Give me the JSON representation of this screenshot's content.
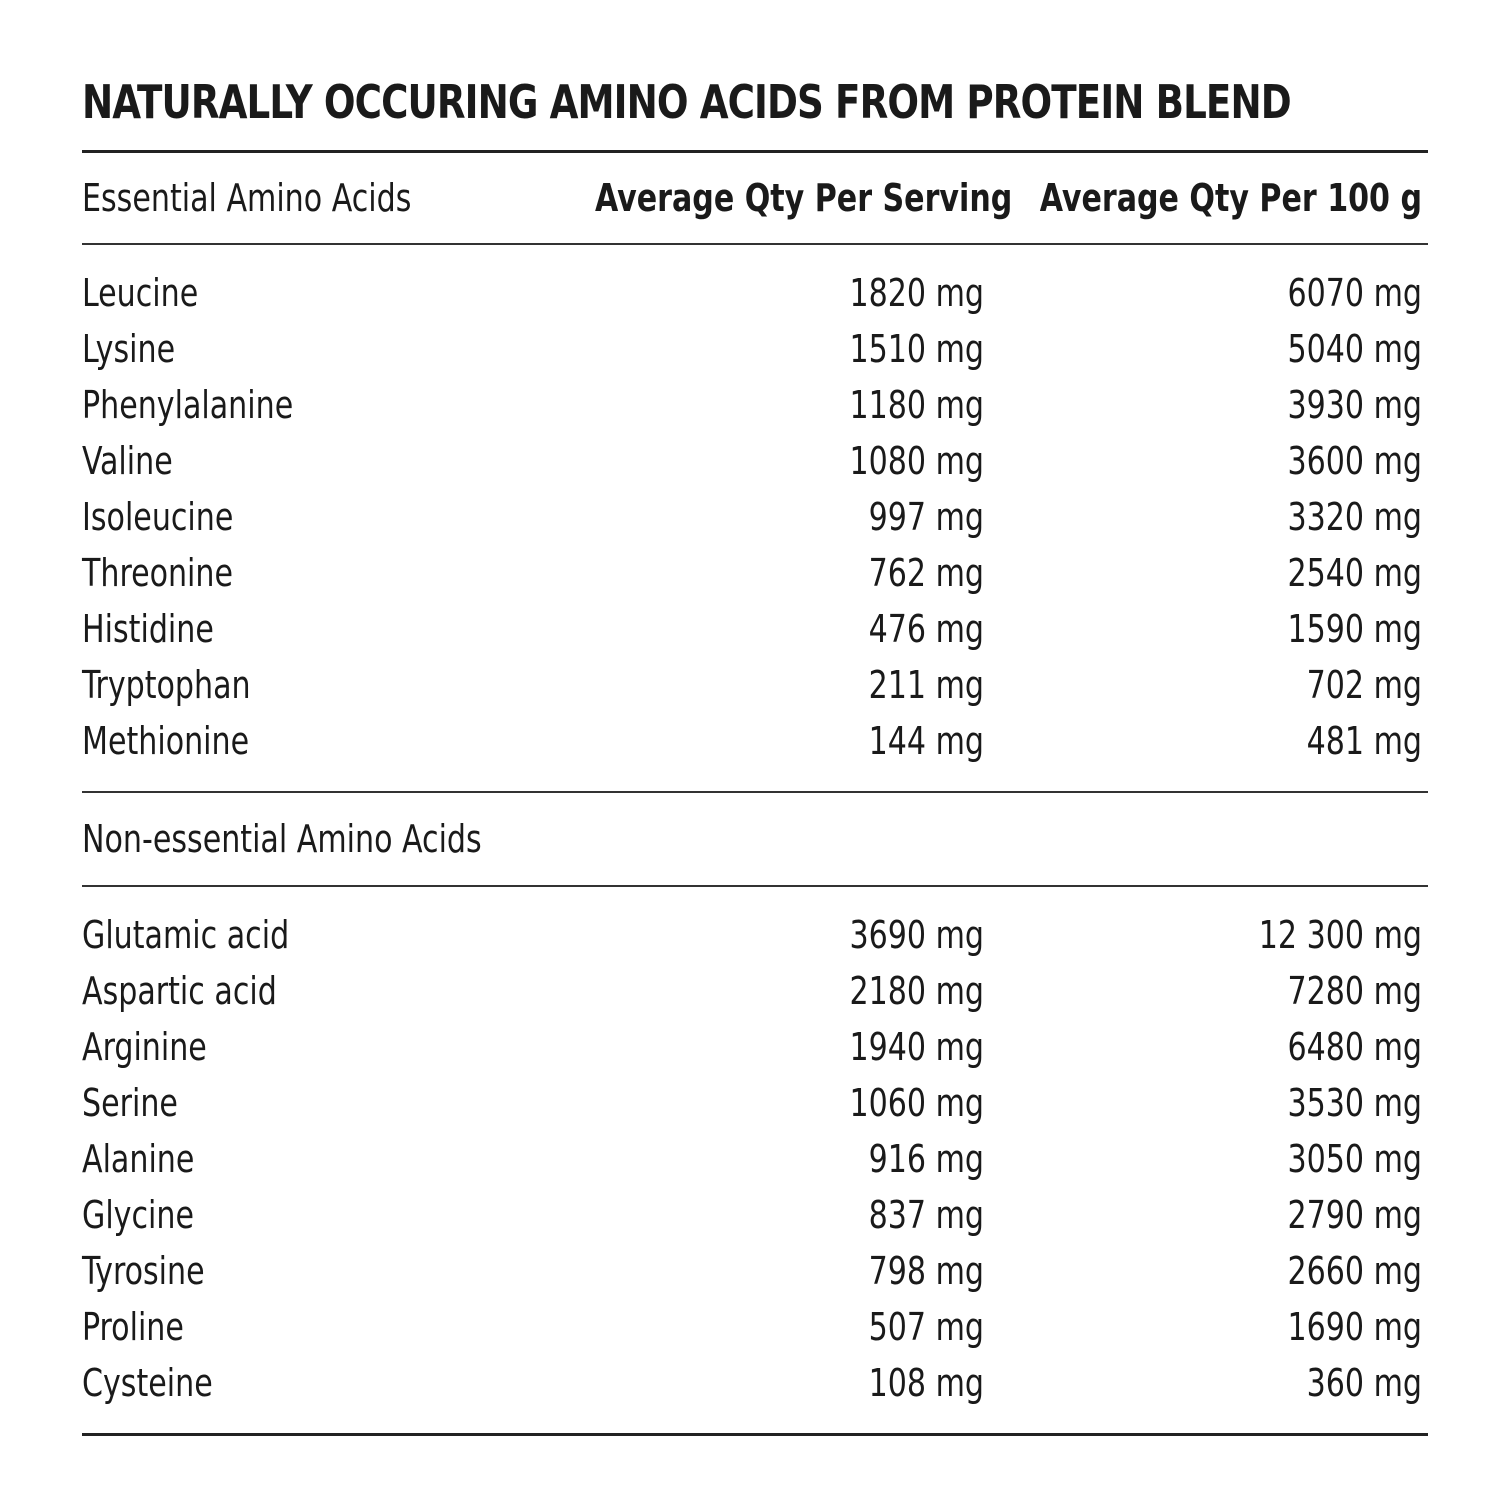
{
  "title": "NATURALLY OCCURING AMINO ACIDS FROM PROTEIN BLEND",
  "table": {
    "header": [
      "Essential Amino Acids",
      "Average Qty Per Serving",
      "Average Qty Per 100 g"
    ],
    "essential_rows": [
      [
        "Leucine",
        "1820 mg",
        "6070 mg"
      ],
      [
        "Lysine",
        "1510 mg",
        "5040 mg"
      ],
      [
        "Phenylalanine",
        "1180 mg",
        "3930 mg"
      ],
      [
        "Valine",
        "1080 mg",
        "3600 mg"
      ],
      [
        "Isoleucine",
        "997 mg",
        "3320 mg"
      ],
      [
        "Threonine",
        "762 mg",
        "2540 mg"
      ],
      [
        "Histidine",
        "476 mg",
        "1590 mg"
      ],
      [
        "Tryptophan",
        "211 mg",
        "702 mg"
      ],
      [
        "Methionine",
        "144 mg",
        "481 mg"
      ]
    ],
    "non_essential_heading": "Non-essential Amino Acids",
    "non_essential_rows": [
      [
        "Glutamic acid",
        "3690 mg",
        "12 300 mg"
      ],
      [
        "Aspartic acid",
        "2180 mg",
        "7280 mg"
      ],
      [
        "Arginine",
        "1940 mg",
        "6480 mg"
      ],
      [
        "Serine",
        "1060 mg",
        "3530 mg"
      ],
      [
        "Alanine",
        "916 mg",
        "3050 mg"
      ],
      [
        "Glycine",
        "837 mg",
        "2790 mg"
      ],
      [
        "Tyrosine",
        "798 mg",
        "2660 mg"
      ],
      [
        "Proline",
        "507 mg",
        "1690 mg"
      ],
      [
        "Cysteine",
        "108 mg",
        "360 mg"
      ]
    ]
  }
}
